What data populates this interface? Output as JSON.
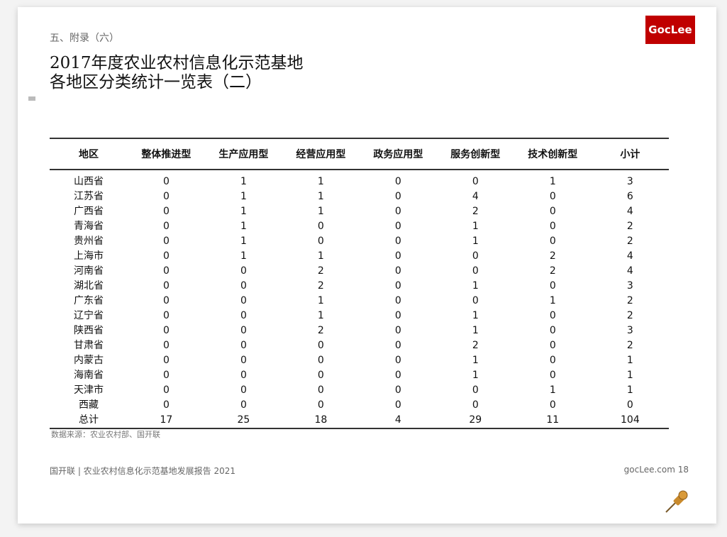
{
  "section": "五、附录（六）",
  "title_line1": "2017年度农业农村信息化示范基地",
  "title_line2": "各地区分类统计一览表（二）",
  "logo": "GocLee",
  "table": {
    "headers": [
      "地区",
      "整体推进型",
      "生产应用型",
      "经营应用型",
      "政务应用型",
      "服务创新型",
      "技术创新型",
      "小计"
    ],
    "rows": [
      [
        "山西省",
        "0",
        "1",
        "1",
        "0",
        "0",
        "1",
        "3"
      ],
      [
        "江苏省",
        "0",
        "1",
        "1",
        "0",
        "4",
        "0",
        "6"
      ],
      [
        "广西省",
        "0",
        "1",
        "1",
        "0",
        "2",
        "0",
        "4"
      ],
      [
        "青海省",
        "0",
        "1",
        "0",
        "0",
        "1",
        "0",
        "2"
      ],
      [
        "贵州省",
        "0",
        "1",
        "0",
        "0",
        "1",
        "0",
        "2"
      ],
      [
        "上海市",
        "0",
        "1",
        "1",
        "0",
        "0",
        "2",
        "4"
      ],
      [
        "河南省",
        "0",
        "0",
        "2",
        "0",
        "0",
        "2",
        "4"
      ],
      [
        "湖北省",
        "0",
        "0",
        "2",
        "0",
        "1",
        "0",
        "3"
      ],
      [
        "广东省",
        "0",
        "0",
        "1",
        "0",
        "0",
        "1",
        "2"
      ],
      [
        "辽宁省",
        "0",
        "0",
        "1",
        "0",
        "1",
        "0",
        "2"
      ],
      [
        "陕西省",
        "0",
        "0",
        "2",
        "0",
        "1",
        "0",
        "3"
      ],
      [
        "甘肃省",
        "0",
        "0",
        "0",
        "0",
        "2",
        "0",
        "2"
      ],
      [
        "内蒙古",
        "0",
        "0",
        "0",
        "0",
        "1",
        "0",
        "1"
      ],
      [
        "海南省",
        "0",
        "0",
        "0",
        "0",
        "1",
        "0",
        "1"
      ],
      [
        "天津市",
        "0",
        "0",
        "0",
        "0",
        "0",
        "1",
        "1"
      ],
      [
        "西藏",
        "0",
        "0",
        "0",
        "0",
        "0",
        "0",
        "0"
      ],
      [
        "总计",
        "17",
        "25",
        "18",
        "4",
        "29",
        "11",
        "104"
      ]
    ]
  },
  "source": "数据来源：农业农村部、国开联",
  "footer_left": "国开联 | 农业农村信息化示范基地发展报告  2021",
  "footer_right": "gocLee.com  18",
  "colors": {
    "brand": "#c00000"
  },
  "icons": {
    "pin": "pushpin-icon"
  }
}
